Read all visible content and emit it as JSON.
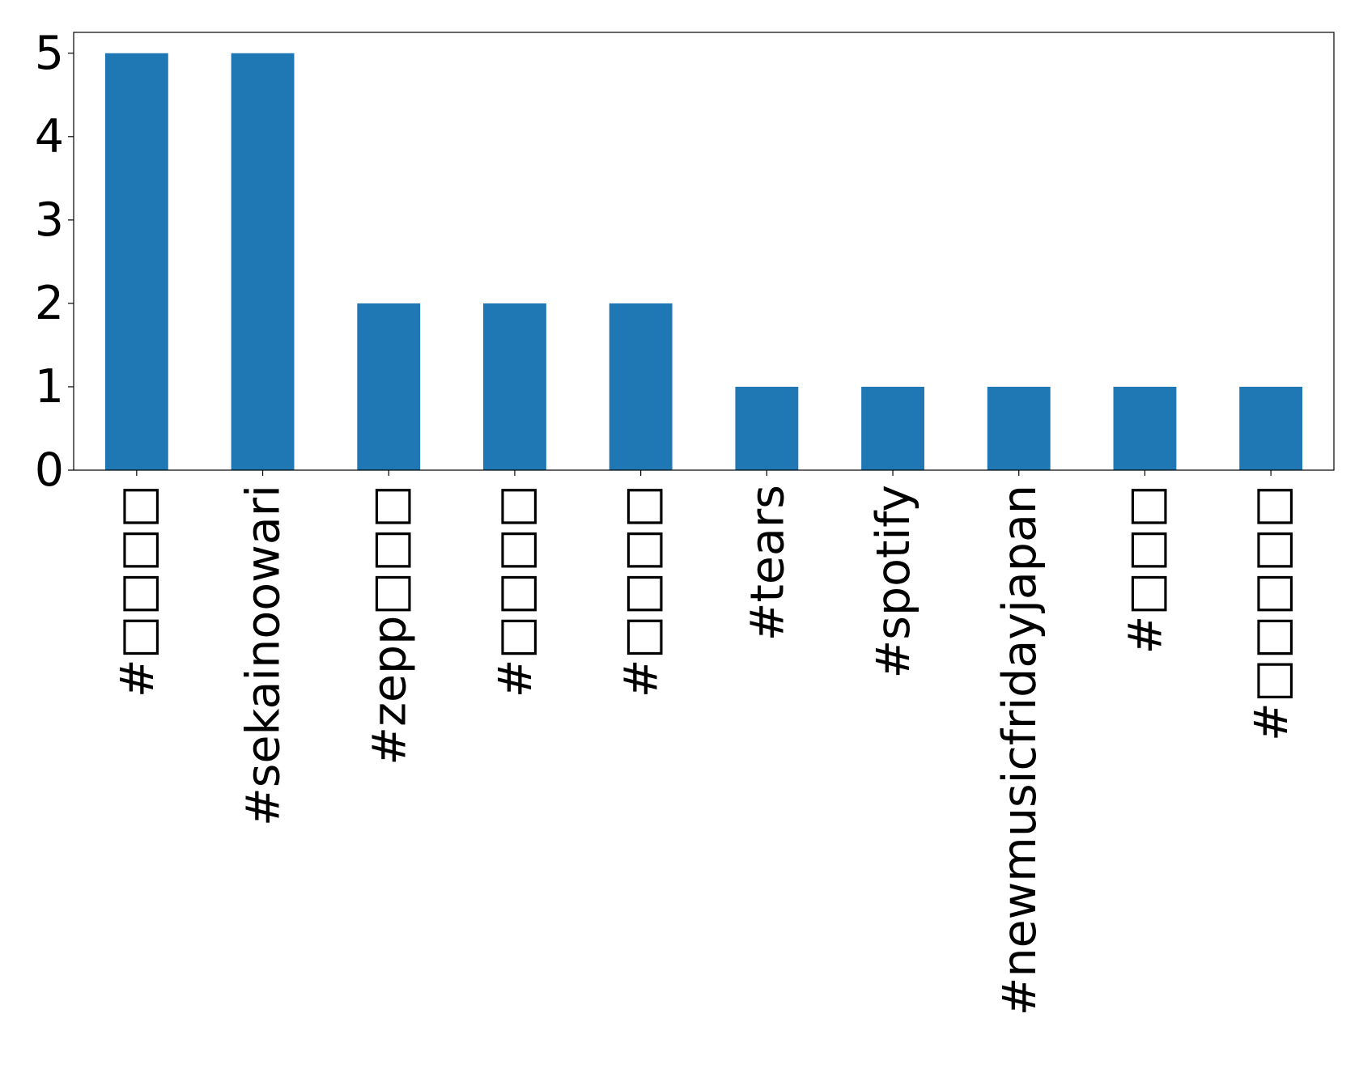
{
  "chart_data": {
    "type": "bar",
    "title": "",
    "xlabel": "",
    "ylabel": "",
    "categories": [
      "#□□□□",
      "#sekainoowari",
      "#zepp□□□",
      "#□□□□",
      "#□□□□",
      "#tears",
      "#spotify",
      "#newmusicfridayjapan",
      "#□□□",
      "#□□□□□"
    ],
    "values": [
      5,
      5,
      2,
      2,
      2,
      1,
      1,
      1,
      1,
      1
    ],
    "ylim": [
      0,
      5.25
    ],
    "yticks": [
      0,
      1,
      2,
      3,
      4,
      5
    ],
    "ytick_labels": [
      "0",
      "1",
      "2",
      "3",
      "4",
      "5"
    ],
    "grid": false,
    "legend": "none",
    "bar_color": "#1f77b4",
    "xtick_rotation": "vertical"
  }
}
